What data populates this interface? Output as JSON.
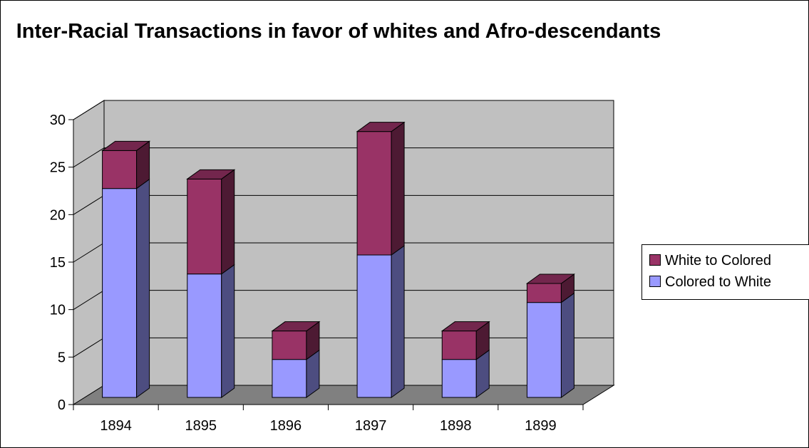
{
  "chart_data": {
    "type": "bar",
    "stacked": true,
    "three_d": true,
    "title": "Inter-Racial Transactions in favor of whites and Afro-descendants",
    "categories": [
      "1894",
      "1895",
      "1896",
      "1897",
      "1898",
      "1899"
    ],
    "series": [
      {
        "name": "Colored to White",
        "values": [
          22,
          13,
          4,
          15,
          4,
          10
        ],
        "color": "#9999ff"
      },
      {
        "name": "White to Colored",
        "values": [
          4,
          10,
          3,
          13,
          3,
          2
        ],
        "color": "#993366"
      }
    ],
    "ylim": [
      0,
      30
    ],
    "yticks": [
      "0",
      "5",
      "10",
      "15",
      "20",
      "25",
      "30"
    ],
    "grid": true,
    "legend_position": "right",
    "wall_color": "#c0c0c0",
    "floor_color": "#808080"
  }
}
